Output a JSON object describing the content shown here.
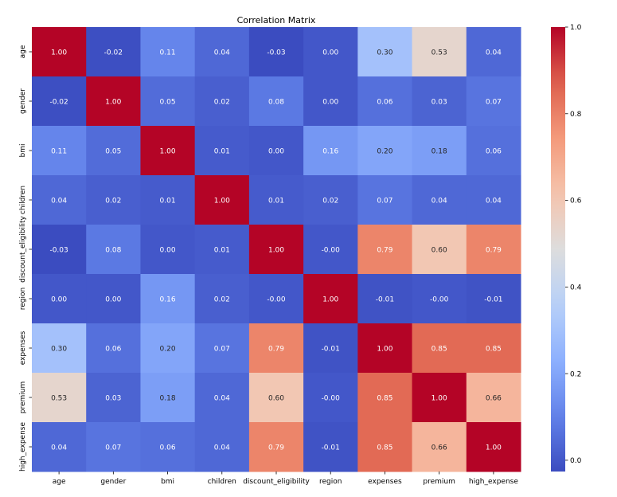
{
  "chart_data": {
    "type": "heatmap",
    "title": "Correlation Matrix",
    "colormap": "coolwarm",
    "labels": [
      "age",
      "gender",
      "bmi",
      "children",
      "discount_eligibility",
      "region",
      "expenses",
      "premium",
      "high_expense"
    ],
    "values": [
      [
        1.0,
        -0.02,
        0.11,
        0.04,
        -0.03,
        0.0,
        0.3,
        0.53,
        0.04
      ],
      [
        -0.02,
        1.0,
        0.05,
        0.02,
        0.08,
        0.0,
        0.06,
        0.03,
        0.07
      ],
      [
        0.11,
        0.05,
        1.0,
        0.01,
        0.0,
        0.16,
        0.2,
        0.18,
        0.06
      ],
      [
        0.04,
        0.02,
        0.01,
        1.0,
        0.01,
        0.02,
        0.07,
        0.04,
        0.04
      ],
      [
        -0.03,
        0.08,
        0.0,
        0.01,
        1.0,
        -0.0,
        0.79,
        0.6,
        0.79
      ],
      [
        0.0,
        0.0,
        0.16,
        0.02,
        -0.0,
        1.0,
        -0.01,
        -0.0,
        -0.01
      ],
      [
        0.3,
        0.06,
        0.2,
        0.07,
        0.79,
        -0.01,
        1.0,
        0.85,
        0.85
      ],
      [
        0.53,
        0.03,
        0.18,
        0.04,
        0.6,
        -0.0,
        0.85,
        1.0,
        0.66
      ],
      [
        0.04,
        0.07,
        0.06,
        0.04,
        0.79,
        -0.01,
        0.85,
        0.66,
        1.0
      ]
    ],
    "annotations": [
      [
        "1.00",
        "-0.02",
        "0.11",
        "0.04",
        "-0.03",
        "0.00",
        "0.30",
        "0.53",
        "0.04"
      ],
      [
        "-0.02",
        "1.00",
        "0.05",
        "0.02",
        "0.08",
        "0.00",
        "0.06",
        "0.03",
        "0.07"
      ],
      [
        "0.11",
        "0.05",
        "1.00",
        "0.01",
        "0.00",
        "0.16",
        "0.20",
        "0.18",
        "0.06"
      ],
      [
        "0.04",
        "0.02",
        "0.01",
        "1.00",
        "0.01",
        "0.02",
        "0.07",
        "0.04",
        "0.04"
      ],
      [
        "-0.03",
        "0.08",
        "0.00",
        "0.01",
        "1.00",
        "-0.00",
        "0.79",
        "0.60",
        "0.79"
      ],
      [
        "0.00",
        "0.00",
        "0.16",
        "0.02",
        "-0.00",
        "1.00",
        "-0.01",
        "-0.00",
        "-0.01"
      ],
      [
        "0.30",
        "0.06",
        "0.20",
        "0.07",
        "0.79",
        "-0.01",
        "1.00",
        "0.85",
        "0.85"
      ],
      [
        "0.53",
        "0.03",
        "0.18",
        "0.04",
        "0.60",
        "-0.00",
        "0.85",
        "1.00",
        "0.66"
      ],
      [
        "0.04",
        "0.07",
        "0.06",
        "0.04",
        "0.79",
        "-0.01",
        "0.85",
        "0.66",
        "1.00"
      ]
    ],
    "colorbar": {
      "range": [
        -0.026,
        1.0
      ],
      "ticks": [
        0.0,
        0.2,
        0.4,
        0.6,
        0.8,
        1.0
      ],
      "tick_labels": [
        "0.0",
        "0.2",
        "0.4",
        "0.6",
        "0.8",
        "1.0"
      ]
    }
  }
}
